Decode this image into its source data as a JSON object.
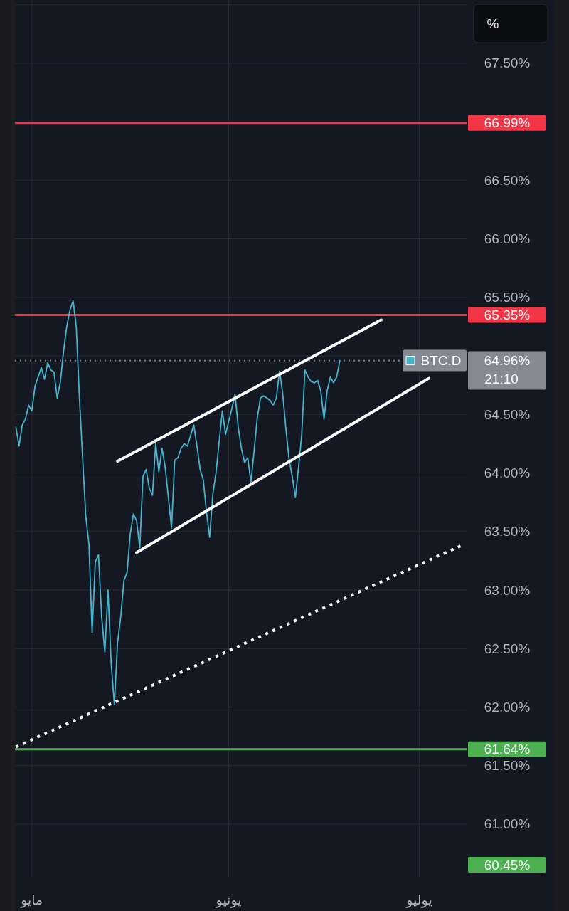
{
  "chart_data": {
    "type": "line",
    "categories": [
      null,
      null,
      null,
      null,
      null,
      "مايو",
      null,
      null,
      null,
      null,
      null,
      null,
      null,
      null,
      null,
      null,
      null,
      null,
      null,
      null,
      null,
      null,
      null,
      null,
      null,
      null,
      null,
      null,
      null,
      null,
      null,
      null,
      null,
      null,
      null,
      null,
      null,
      null,
      null,
      null,
      null,
      null,
      null,
      null,
      null,
      null,
      null,
      null,
      null,
      null,
      null,
      null,
      null,
      null,
      null,
      null,
      null,
      null,
      null,
      null,
      null,
      null,
      null,
      null,
      null,
      null,
      null,
      "يونيو",
      null,
      null,
      null,
      null,
      null,
      null,
      null,
      null,
      null,
      null,
      null,
      null,
      null,
      null,
      null,
      null,
      null,
      null,
      null,
      null,
      null,
      null,
      null,
      null,
      null,
      null,
      null,
      null,
      null,
      null,
      null,
      null,
      null,
      null,
      null,
      null,
      null,
      null,
      null,
      null,
      null,
      null,
      null,
      null,
      null,
      null,
      null,
      null,
      null,
      null,
      null,
      null,
      null,
      null,
      null,
      null,
      null,
      null,
      null,
      "يوليو",
      null,
      null,
      null,
      null,
      null,
      null,
      null,
      null,
      null,
      null,
      null,
      null,
      null,
      null
    ],
    "ylim": [
      60.55,
      68.04
    ],
    "yticks": [
      {
        "value": 61,
        "label": "61.00%"
      },
      {
        "value": 61.5,
        "label": "61.50%"
      },
      {
        "value": 62,
        "label": "62.00%"
      },
      {
        "value": 62.5,
        "label": "62.50%"
      },
      {
        "value": 63,
        "label": "63.00%"
      },
      {
        "value": 63.5,
        "label": "63.50%"
      },
      {
        "value": 64,
        "label": "64.00%"
      },
      {
        "value": 64.5,
        "label": "64.50%"
      },
      {
        "value": 65,
        "label": null
      },
      {
        "value": 65.5,
        "label": "65.50%"
      },
      {
        "value": 66,
        "label": "66.00%"
      },
      {
        "value": 66.5,
        "label": "66.50%"
      },
      {
        "value": 67,
        "label": null
      },
      {
        "value": 67.5,
        "label": "67.50%"
      },
      {
        "value": 68,
        "label": null
      }
    ],
    "grid": true,
    "series": [
      {
        "name": "BTC.D",
        "color": "#45b4cc",
        "values": [
          64.39,
          64.23,
          64.41,
          64.46,
          64.58,
          64.53,
          64.74,
          64.82,
          64.9,
          64.8,
          64.94,
          64.88,
          64.86,
          64.64,
          64.78,
          65.04,
          65.25,
          65.39,
          65.47,
          65.25,
          64.64,
          64.13,
          63.63,
          63.39,
          62.64,
          63.24,
          63.3,
          62.77,
          62.47,
          63.0,
          62.37,
          62.02,
          62.55,
          62.77,
          63.08,
          63.15,
          63.48,
          63.65,
          63.59,
          63.36,
          63.97,
          64.03,
          63.87,
          63.81,
          64.25,
          64.01,
          64.21,
          64.05,
          63.79,
          63.53,
          64.11,
          64.13,
          64.21,
          64.25,
          64.23,
          64.32,
          64.41,
          64.23,
          64.03,
          63.94,
          63.67,
          63.45,
          63.82,
          64.0,
          64.27,
          64.53,
          64.33,
          64.44,
          64.55,
          64.67,
          64.39,
          64.21,
          64.09,
          64.13,
          63.92,
          64.19,
          64.47,
          64.64,
          64.66,
          64.64,
          64.62,
          64.58,
          64.64,
          64.87,
          64.68,
          64.38,
          64.12,
          63.97,
          63.79,
          64.05,
          64.33,
          64.88,
          64.82,
          64.78,
          64.77,
          64.79,
          64.7,
          64.46,
          64.7,
          64.82,
          64.77,
          64.82,
          64.96,
          null,
          null,
          null,
          null,
          null,
          null,
          null,
          null,
          null,
          null,
          null,
          null,
          null,
          null,
          null,
          null,
          null,
          null,
          null,
          null,
          null,
          null,
          null,
          null,
          null,
          null,
          null,
          null,
          null,
          null,
          null,
          null,
          null,
          null,
          null,
          null,
          null,
          null,
          null
        ]
      },
      {
        "color": "#ffffff",
        "line_style": "solid",
        "values": [
          null,
          null,
          null,
          null,
          null,
          null,
          null,
          null,
          null,
          null,
          null,
          null,
          null,
          null,
          null,
          null,
          null,
          null,
          null,
          null,
          null,
          null,
          null,
          null,
          null,
          null,
          null,
          null,
          null,
          null,
          null,
          null,
          64.1,
          64.115,
          64.129,
          64.144,
          64.158,
          64.173,
          64.187,
          64.202,
          64.216,
          64.231,
          64.245,
          64.26,
          64.275,
          64.289,
          64.304,
          64.318,
          64.333,
          64.347,
          64.362,
          64.376,
          64.391,
          64.405,
          64.42,
          64.435,
          64.449,
          64.464,
          64.478,
          64.493,
          64.507,
          64.522,
          64.536,
          64.551,
          64.565,
          64.58,
          64.595,
          64.609,
          64.624,
          64.638,
          64.653,
          64.667,
          64.682,
          64.696,
          64.711,
          64.725,
          64.74,
          64.755,
          64.769,
          64.784,
          64.798,
          64.813,
          64.827,
          64.842,
          64.856,
          64.871,
          64.885,
          64.9,
          64.915,
          64.929,
          64.944,
          64.958,
          64.973,
          64.987,
          65.002,
          65.016,
          65.031,
          65.045,
          65.06,
          65.075,
          65.089,
          65.104,
          65.118,
          65.133,
          65.147,
          65.162,
          65.176,
          65.191,
          65.205,
          65.22,
          65.235,
          65.249,
          65.264,
          65.278,
          65.293,
          65.307,
          null,
          null,
          null,
          null,
          null,
          null,
          null,
          null,
          null,
          null,
          null,
          null,
          null,
          null,
          null,
          null,
          null,
          null,
          null,
          null,
          null,
          null,
          null,
          null,
          null,
          null
        ]
      },
      {
        "color": "#ffffff",
        "line_style": "solid",
        "values": [
          null,
          null,
          null,
          null,
          null,
          null,
          null,
          null,
          null,
          null,
          null,
          null,
          null,
          null,
          null,
          null,
          null,
          null,
          null,
          null,
          null,
          null,
          null,
          null,
          null,
          null,
          null,
          null,
          null,
          null,
          null,
          null,
          null,
          null,
          null,
          null,
          null,
          null,
          63.32,
          63.336,
          63.352,
          63.369,
          63.385,
          63.401,
          63.417,
          63.433,
          63.449,
          63.466,
          63.482,
          63.498,
          63.514,
          63.53,
          63.546,
          63.563,
          63.579,
          63.595,
          63.611,
          63.627,
          63.643,
          63.66,
          63.676,
          63.692,
          63.708,
          63.724,
          63.74,
          63.757,
          63.773,
          63.789,
          63.805,
          63.821,
          63.838,
          63.854,
          63.87,
          63.886,
          63.902,
          63.918,
          63.935,
          63.951,
          63.967,
          63.983,
          63.999,
          64.015,
          64.032,
          64.048,
          64.064,
          64.08,
          64.096,
          64.112,
          64.129,
          64.145,
          64.161,
          64.177,
          64.193,
          64.21,
          64.226,
          64.242,
          64.258,
          64.274,
          64.29,
          64.307,
          64.323,
          64.339,
          64.355,
          64.371,
          64.387,
          64.404,
          64.42,
          64.436,
          64.452,
          64.468,
          64.485,
          64.501,
          64.517,
          64.533,
          64.549,
          64.565,
          64.582,
          64.598,
          64.614,
          64.63,
          64.646,
          64.662,
          64.679,
          64.695,
          64.711,
          64.727,
          64.743,
          64.759,
          64.776,
          64.792,
          64.808,
          null,
          null,
          null,
          null,
          null,
          null,
          null,
          null,
          null,
          null,
          null
        ]
      },
      {
        "color": "#ffffff",
        "line_style": "dotted",
        "values": [
          61.66,
          61.672,
          61.685,
          61.697,
          61.709,
          61.721,
          61.734,
          61.746,
          61.758,
          61.77,
          61.783,
          61.795,
          61.807,
          61.819,
          61.832,
          61.844,
          61.856,
          61.868,
          61.881,
          61.893,
          61.905,
          61.917,
          61.93,
          61.942,
          61.954,
          61.967,
          61.979,
          61.991,
          62.003,
          62.016,
          62.028,
          62.04,
          62.052,
          62.065,
          62.077,
          62.089,
          62.101,
          62.114,
          62.126,
          62.138,
          62.15,
          62.163,
          62.175,
          62.187,
          62.199,
          62.212,
          62.224,
          62.236,
          62.248,
          62.261,
          62.273,
          62.285,
          62.298,
          62.31,
          62.322,
          62.334,
          62.347,
          62.359,
          62.371,
          62.383,
          62.396,
          62.408,
          62.42,
          62.432,
          62.445,
          62.457,
          62.469,
          62.481,
          62.494,
          62.506,
          62.518,
          62.53,
          62.543,
          62.555,
          62.567,
          62.58,
          62.592,
          62.604,
          62.616,
          62.629,
          62.641,
          62.653,
          62.665,
          62.678,
          62.69,
          62.702,
          62.714,
          62.727,
          62.739,
          62.751,
          62.763,
          62.776,
          62.788,
          62.8,
          62.812,
          62.825,
          62.837,
          62.849,
          62.861,
          62.874,
          62.886,
          62.898,
          62.911,
          62.923,
          62.935,
          62.947,
          62.96,
          62.972,
          62.984,
          62.996,
          63.009,
          63.021,
          63.033,
          63.045,
          63.058,
          63.07,
          63.082,
          63.094,
          63.107,
          63.119,
          63.131,
          63.143,
          63.156,
          63.168,
          63.18,
          63.192,
          63.205,
          63.217,
          63.229,
          63.242,
          63.254,
          63.266,
          63.278,
          63.291,
          63.303,
          63.315,
          63.327,
          63.34,
          63.352,
          63.364,
          63.376,
          63.389
        ]
      }
    ],
    "ref_lines": [
      {
        "axis": "y",
        "value": 66.99,
        "label": "66.99%",
        "color": "#f23645"
      },
      {
        "axis": "y",
        "value": 65.35,
        "label": "65.35%",
        "color": "#f23645"
      },
      {
        "axis": "y",
        "value": 61.64,
        "label": "61.64%",
        "color": "#4caf50"
      },
      {
        "axis": "y",
        "value": 64.96,
        "label": "64.96%",
        "color": "#868993",
        "line_style": "dotted"
      }
    ],
    "annotations": [
      "%",
      "21:10",
      "60.45%"
    ]
  }
}
